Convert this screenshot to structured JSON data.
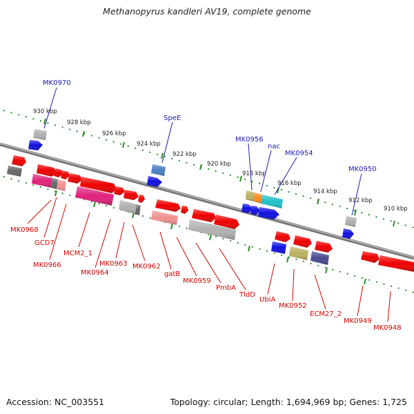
{
  "title": "Methanopyrus kandleri AV19, complete genome",
  "footer": {
    "accession": "Accession: NC_003551",
    "summary": "Topology: circular; Length: 1,694,969 bp; Genes: 1,725"
  },
  "ticks": [
    "930 kbp",
    "928 kbp",
    "926 kbp",
    "924 kbp",
    "922 kbp",
    "920 kbp",
    "918 kbp",
    "916 kbp",
    "914 kbp",
    "912 kbp",
    "910 kbp"
  ],
  "colors": {
    "gene_red": "#ee0000",
    "gene_blue": "#1010e0",
    "gene_magenta": "#e0207a",
    "gene_gray": "#b0b0b0",
    "gene_darkgray": "#666666",
    "gene_olive": "#bbb060",
    "gene_orange": "#ff8a1a",
    "gene_cyan": "#20c0c8",
    "gene_steel": "#4a7fc0",
    "gene_navy": "#4a4a90",
    "gene_pink": "#f09090",
    "backbone": "#888888",
    "tick_green": "#2a8a2a",
    "label_blue": "#1a1ab0",
    "label_red": "#d40000"
  },
  "labels_top": [
    "MK0970",
    "SpeE",
    "MK0956",
    "nac",
    "MK0954",
    "MK0950"
  ],
  "labels_bottom": [
    "MK0968",
    "GCD7",
    "MK0966",
    "MCM2_1",
    "MK0964",
    "MK0963",
    "MK0962",
    "gatB",
    "MK0959",
    "PmbA",
    "TldD",
    "UbiA",
    "MK0952",
    "ECM27_2",
    "MK0949",
    "MK0948"
  ]
}
